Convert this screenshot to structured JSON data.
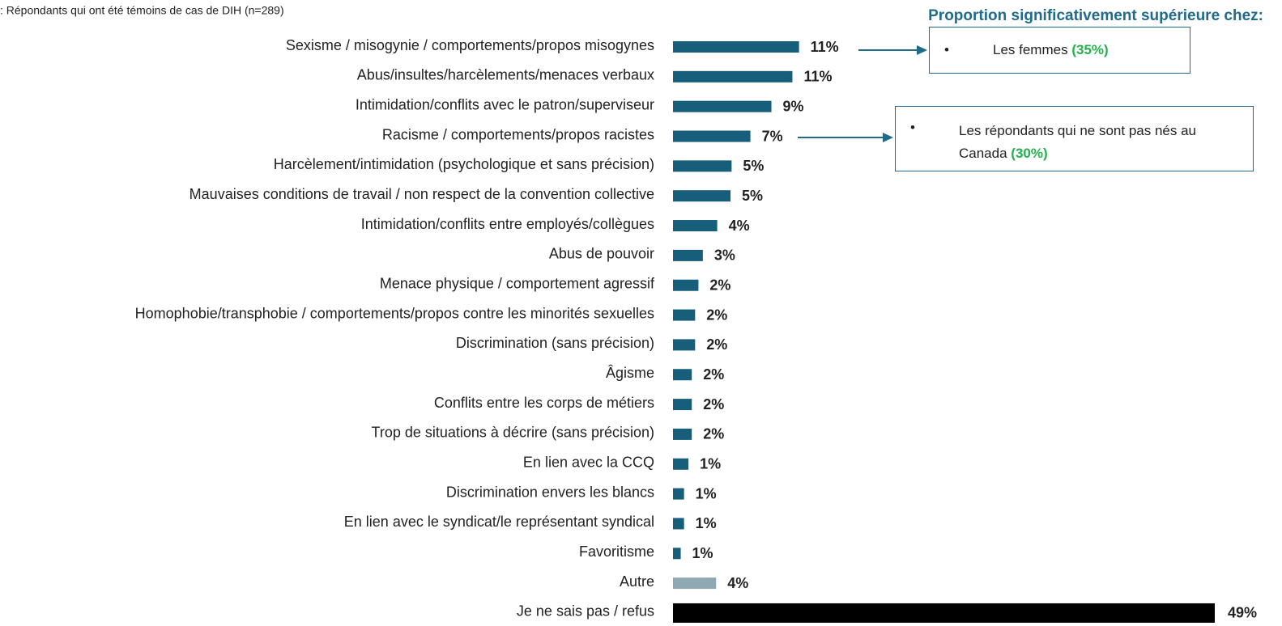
{
  "chart_data": {
    "type": "bar",
    "orientation": "horizontal",
    "subtitle": ": Répondants qui ont été témoins de cas de DIH (n=289)",
    "categories": [
      "Sexisme / misogynie / comportements/propos misogynes",
      "Abus/insultes/harcèlements/menaces verbaux",
      "Intimidation/conflits avec le patron/superviseur",
      "Racisme / comportements/propos racistes",
      "Harcèlement/intimidation (psychologique et sans précision)",
      "Mauvaises conditions de travail / non respect de la convention collective",
      "Intimidation/conflits entre employés/collègues",
      "Abus de pouvoir",
      "Menace physique / comportement agressif",
      "Homophobie/transphobie / comportements/propos contre les minorités sexuelles",
      "Discrimination (sans précision)",
      "Âgisme",
      "Conflits entre les corps de métiers",
      "Trop de situations à décrire (sans précision)",
      "En lien avec la CCQ",
      "Discrimination envers les blancs",
      "En lien avec le syndicat/le représentant syndical",
      "Favoritisme",
      "Autre",
      "Je ne sais pas / refus"
    ],
    "values": [
      11.4,
      10.8,
      8.9,
      7.0,
      5.3,
      5.2,
      4.0,
      2.7,
      2.3,
      2.0,
      2.0,
      1.7,
      1.7,
      1.7,
      1.4,
      1.0,
      1.0,
      0.7,
      3.9,
      49
    ],
    "value_labels": [
      "11%",
      "11%",
      "9%",
      "7%",
      "5%",
      "5%",
      "4%",
      "3%",
      "2%",
      "2%",
      "2%",
      "2%",
      "2%",
      "2%",
      "1%",
      "1%",
      "1%",
      "1%",
      "4%",
      "49%"
    ],
    "colors": [
      "#175e7a",
      "#175e7a",
      "#175e7a",
      "#175e7a",
      "#175e7a",
      "#175e7a",
      "#175e7a",
      "#175e7a",
      "#175e7a",
      "#175e7a",
      "#175e7a",
      "#175e7a",
      "#175e7a",
      "#175e7a",
      "#175e7a",
      "#175e7a",
      "#175e7a",
      "#175e7a",
      "#8fa8b1",
      "#000000"
    ],
    "annotation_title": "Proportion significativement supérieure chez:",
    "annotations": [
      {
        "text": "Les femmes",
        "highlight": "(35%)"
      },
      {
        "text": "Les répondants qui ne sont pas nés au Canada",
        "highlight": "(30%)"
      }
    ]
  }
}
